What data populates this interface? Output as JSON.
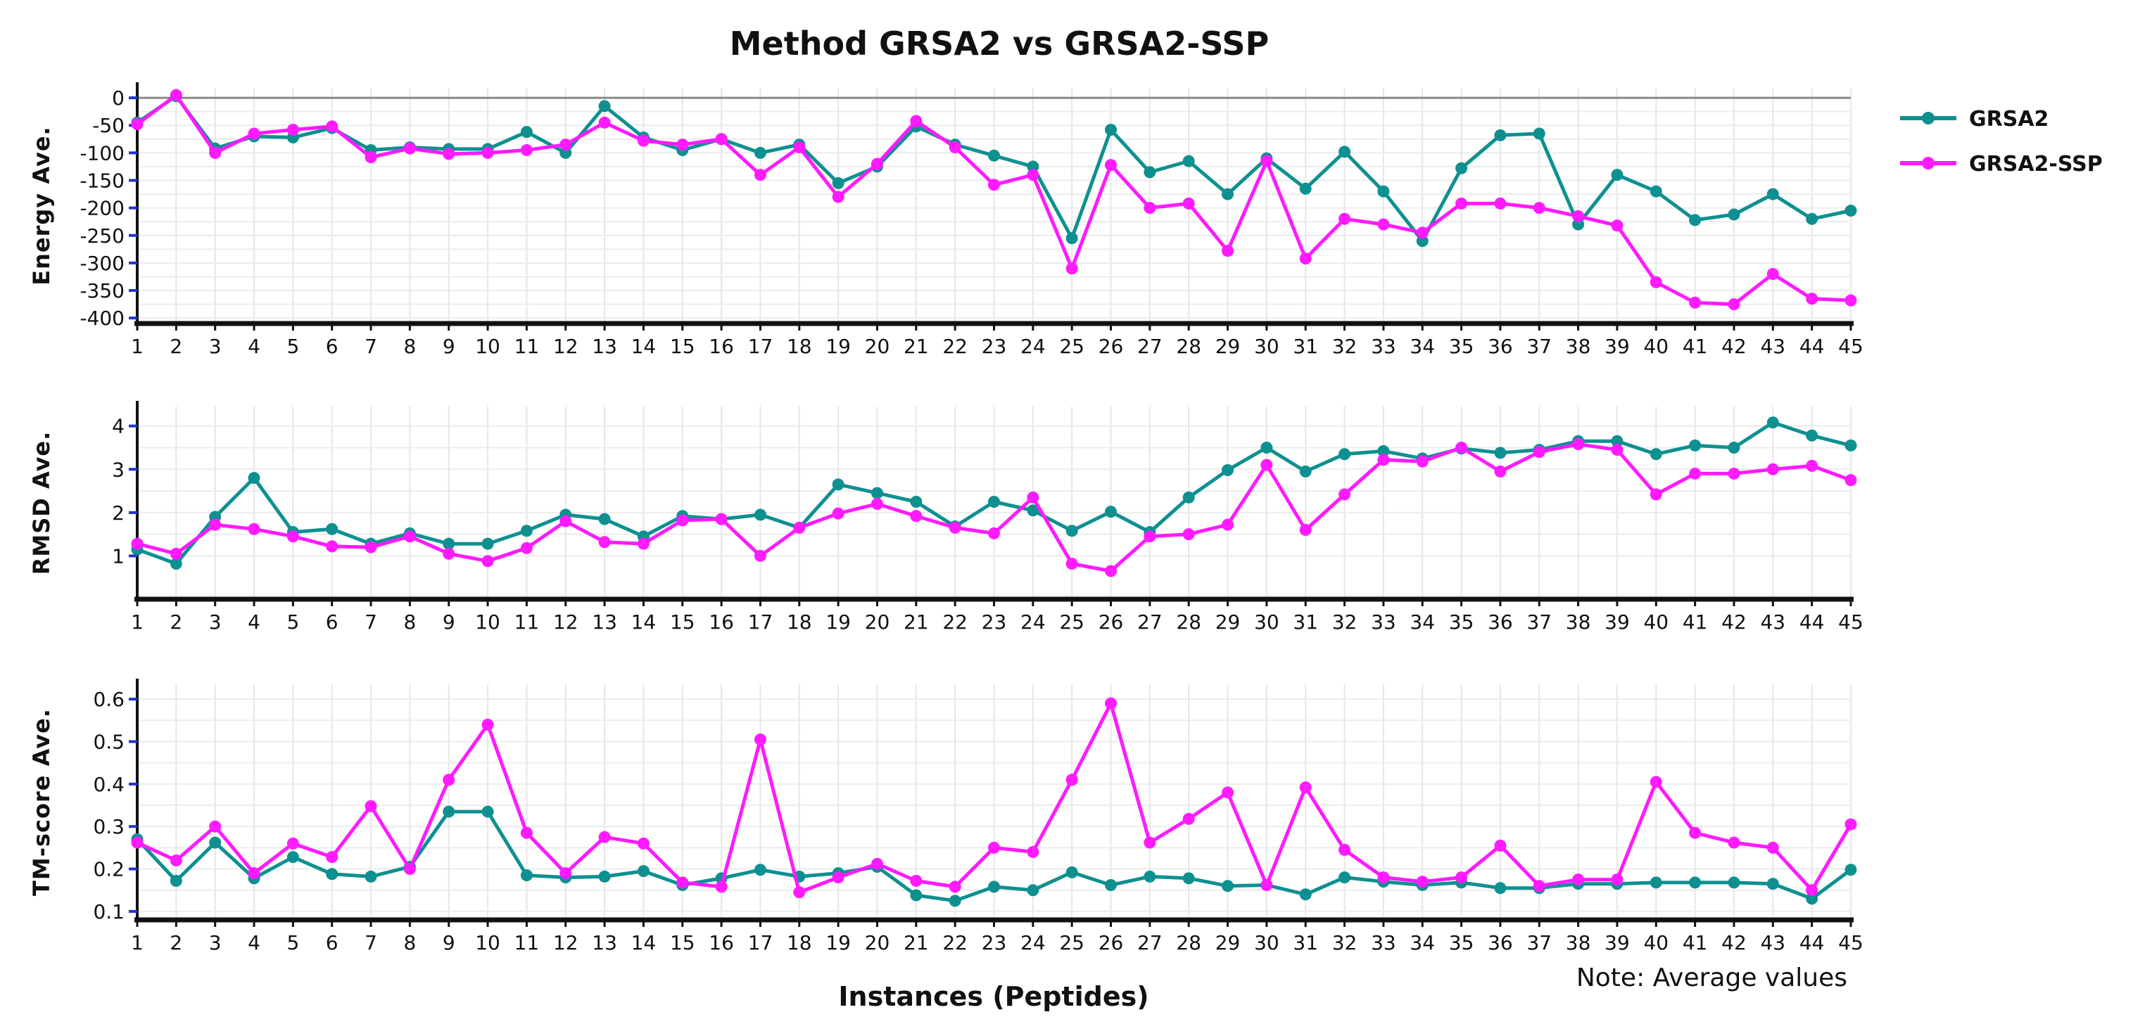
{
  "chart_data": {
    "type": "line",
    "title": "Method GRSA2 vs GRSA2-SSP",
    "xlabel": "Instances (Peptides)",
    "note": "Note: Average values",
    "categories": [
      "1",
      "2",
      "3",
      "4",
      "5",
      "6",
      "7",
      "8",
      "9",
      "10",
      "11",
      "12",
      "13",
      "14",
      "15",
      "16",
      "17",
      "18",
      "19",
      "20",
      "21",
      "22",
      "23",
      "24",
      "25",
      "26",
      "27",
      "28",
      "29",
      "30",
      "31",
      "32",
      "33",
      "34",
      "35",
      "36",
      "37",
      "38",
      "39",
      "40",
      "41",
      "42",
      "43",
      "44",
      "45"
    ],
    "legend": [
      {
        "name": "GRSA2",
        "color": "#0e9090"
      },
      {
        "name": "GRSA2-SSP",
        "color": "#ff1aff"
      }
    ],
    "panels": [
      {
        "ylabel": "Energy Ave.",
        "ylim": [
          -410,
          18
        ],
        "yticks": [
          0,
          -50,
          -100,
          -150,
          -200,
          -250,
          -300,
          -350,
          -400
        ],
        "zero_line": true,
        "series": [
          {
            "name": "GRSA2",
            "values": [
              -45,
              3,
              -92,
              -70,
              -72,
              -55,
              -95,
              -90,
              -93,
              -93,
              -62,
              -100,
              -15,
              -72,
              -95,
              -75,
              -100,
              -85,
              -155,
              -125,
              -52,
              -85,
              -105,
              -125,
              -255,
              -58,
              -135,
              -115,
              -175,
              -110,
              -165,
              -98,
              -170,
              -260,
              -128,
              -68,
              -65,
              -230,
              -140,
              -170,
              -222,
              -212,
              -175,
              -220,
              -205
            ]
          },
          {
            "name": "GRSA2-SSP",
            "values": [
              -48,
              5,
              -100,
              -65,
              -58,
              -52,
              -108,
              -92,
              -102,
              -100,
              -95,
              -85,
              -45,
              -78,
              -85,
              -75,
              -140,
              -90,
              -180,
              -120,
              -42,
              -90,
              -158,
              -140,
              -310,
              -122,
              -200,
              -192,
              -278,
              -115,
              -292,
              -220,
              -230,
              -245,
              -192,
              -192,
              -200,
              -215,
              -232,
              -335,
              -372,
              -375,
              -320,
              -365,
              -368
            ]
          }
        ]
      },
      {
        "ylabel": "RMSD Ave.",
        "ylim": [
          0,
          4.45
        ],
        "yticks": [
          1,
          2,
          3,
          4
        ],
        "zero_line": false,
        "series": [
          {
            "name": "GRSA2",
            "values": [
              1.15,
              0.82,
              1.9,
              2.8,
              1.55,
              1.62,
              1.28,
              1.52,
              1.28,
              1.28,
              1.58,
              1.95,
              1.85,
              1.45,
              1.92,
              1.85,
              1.95,
              1.65,
              2.65,
              2.45,
              2.25,
              1.68,
              2.25,
              2.05,
              1.58,
              2.02,
              1.55,
              2.35,
              2.98,
              3.5,
              2.95,
              3.35,
              3.42,
              3.25,
              3.48,
              3.38,
              3.45,
              3.65,
              3.65,
              3.35,
              3.55,
              3.5,
              4.08,
              3.78,
              3.55
            ]
          },
          {
            "name": "GRSA2-SSP",
            "values": [
              1.28,
              1.05,
              1.72,
              1.62,
              1.45,
              1.22,
              1.2,
              1.45,
              1.05,
              0.88,
              1.18,
              1.8,
              1.32,
              1.28,
              1.82,
              1.85,
              1.0,
              1.65,
              1.98,
              2.2,
              1.92,
              1.65,
              1.52,
              2.35,
              0.82,
              0.65,
              1.45,
              1.5,
              1.72,
              3.1,
              1.6,
              2.42,
              3.22,
              3.18,
              3.5,
              2.95,
              3.4,
              3.58,
              3.45,
              2.42,
              2.9,
              2.9,
              3.0,
              3.08,
              2.75
            ]
          }
        ]
      },
      {
        "ylabel": "TM-score Ave.",
        "ylim": [
          0.08,
          0.635
        ],
        "yticks": [
          0.1,
          0.2,
          0.3,
          0.4,
          0.5,
          0.6
        ],
        "zero_line": false,
        "series": [
          {
            "name": "GRSA2",
            "values": [
              0.27,
              0.172,
              0.262,
              0.178,
              0.228,
              0.188,
              0.182,
              0.205,
              0.335,
              0.335,
              0.185,
              0.18,
              0.182,
              0.195,
              0.162,
              0.178,
              0.198,
              0.182,
              0.19,
              0.205,
              0.138,
              0.125,
              0.158,
              0.15,
              0.192,
              0.162,
              0.182,
              0.178,
              0.16,
              0.162,
              0.14,
              0.18,
              0.17,
              0.162,
              0.168,
              0.155,
              0.155,
              0.165,
              0.165,
              0.168,
              0.168,
              0.168,
              0.165,
              0.13,
              0.198
            ]
          },
          {
            "name": "GRSA2-SSP",
            "values": [
              0.262,
              0.22,
              0.3,
              0.19,
              0.26,
              0.228,
              0.348,
              0.2,
              0.41,
              0.54,
              0.285,
              0.19,
              0.275,
              0.26,
              0.168,
              0.158,
              0.505,
              0.145,
              0.18,
              0.212,
              0.172,
              0.158,
              0.25,
              0.24,
              0.41,
              0.59,
              0.262,
              0.318,
              0.38,
              0.162,
              0.392,
              0.245,
              0.18,
              0.17,
              0.18,
              0.255,
              0.16,
              0.175,
              0.175,
              0.405,
              0.285,
              0.262,
              0.25,
              0.15,
              0.305
            ]
          }
        ]
      }
    ]
  }
}
